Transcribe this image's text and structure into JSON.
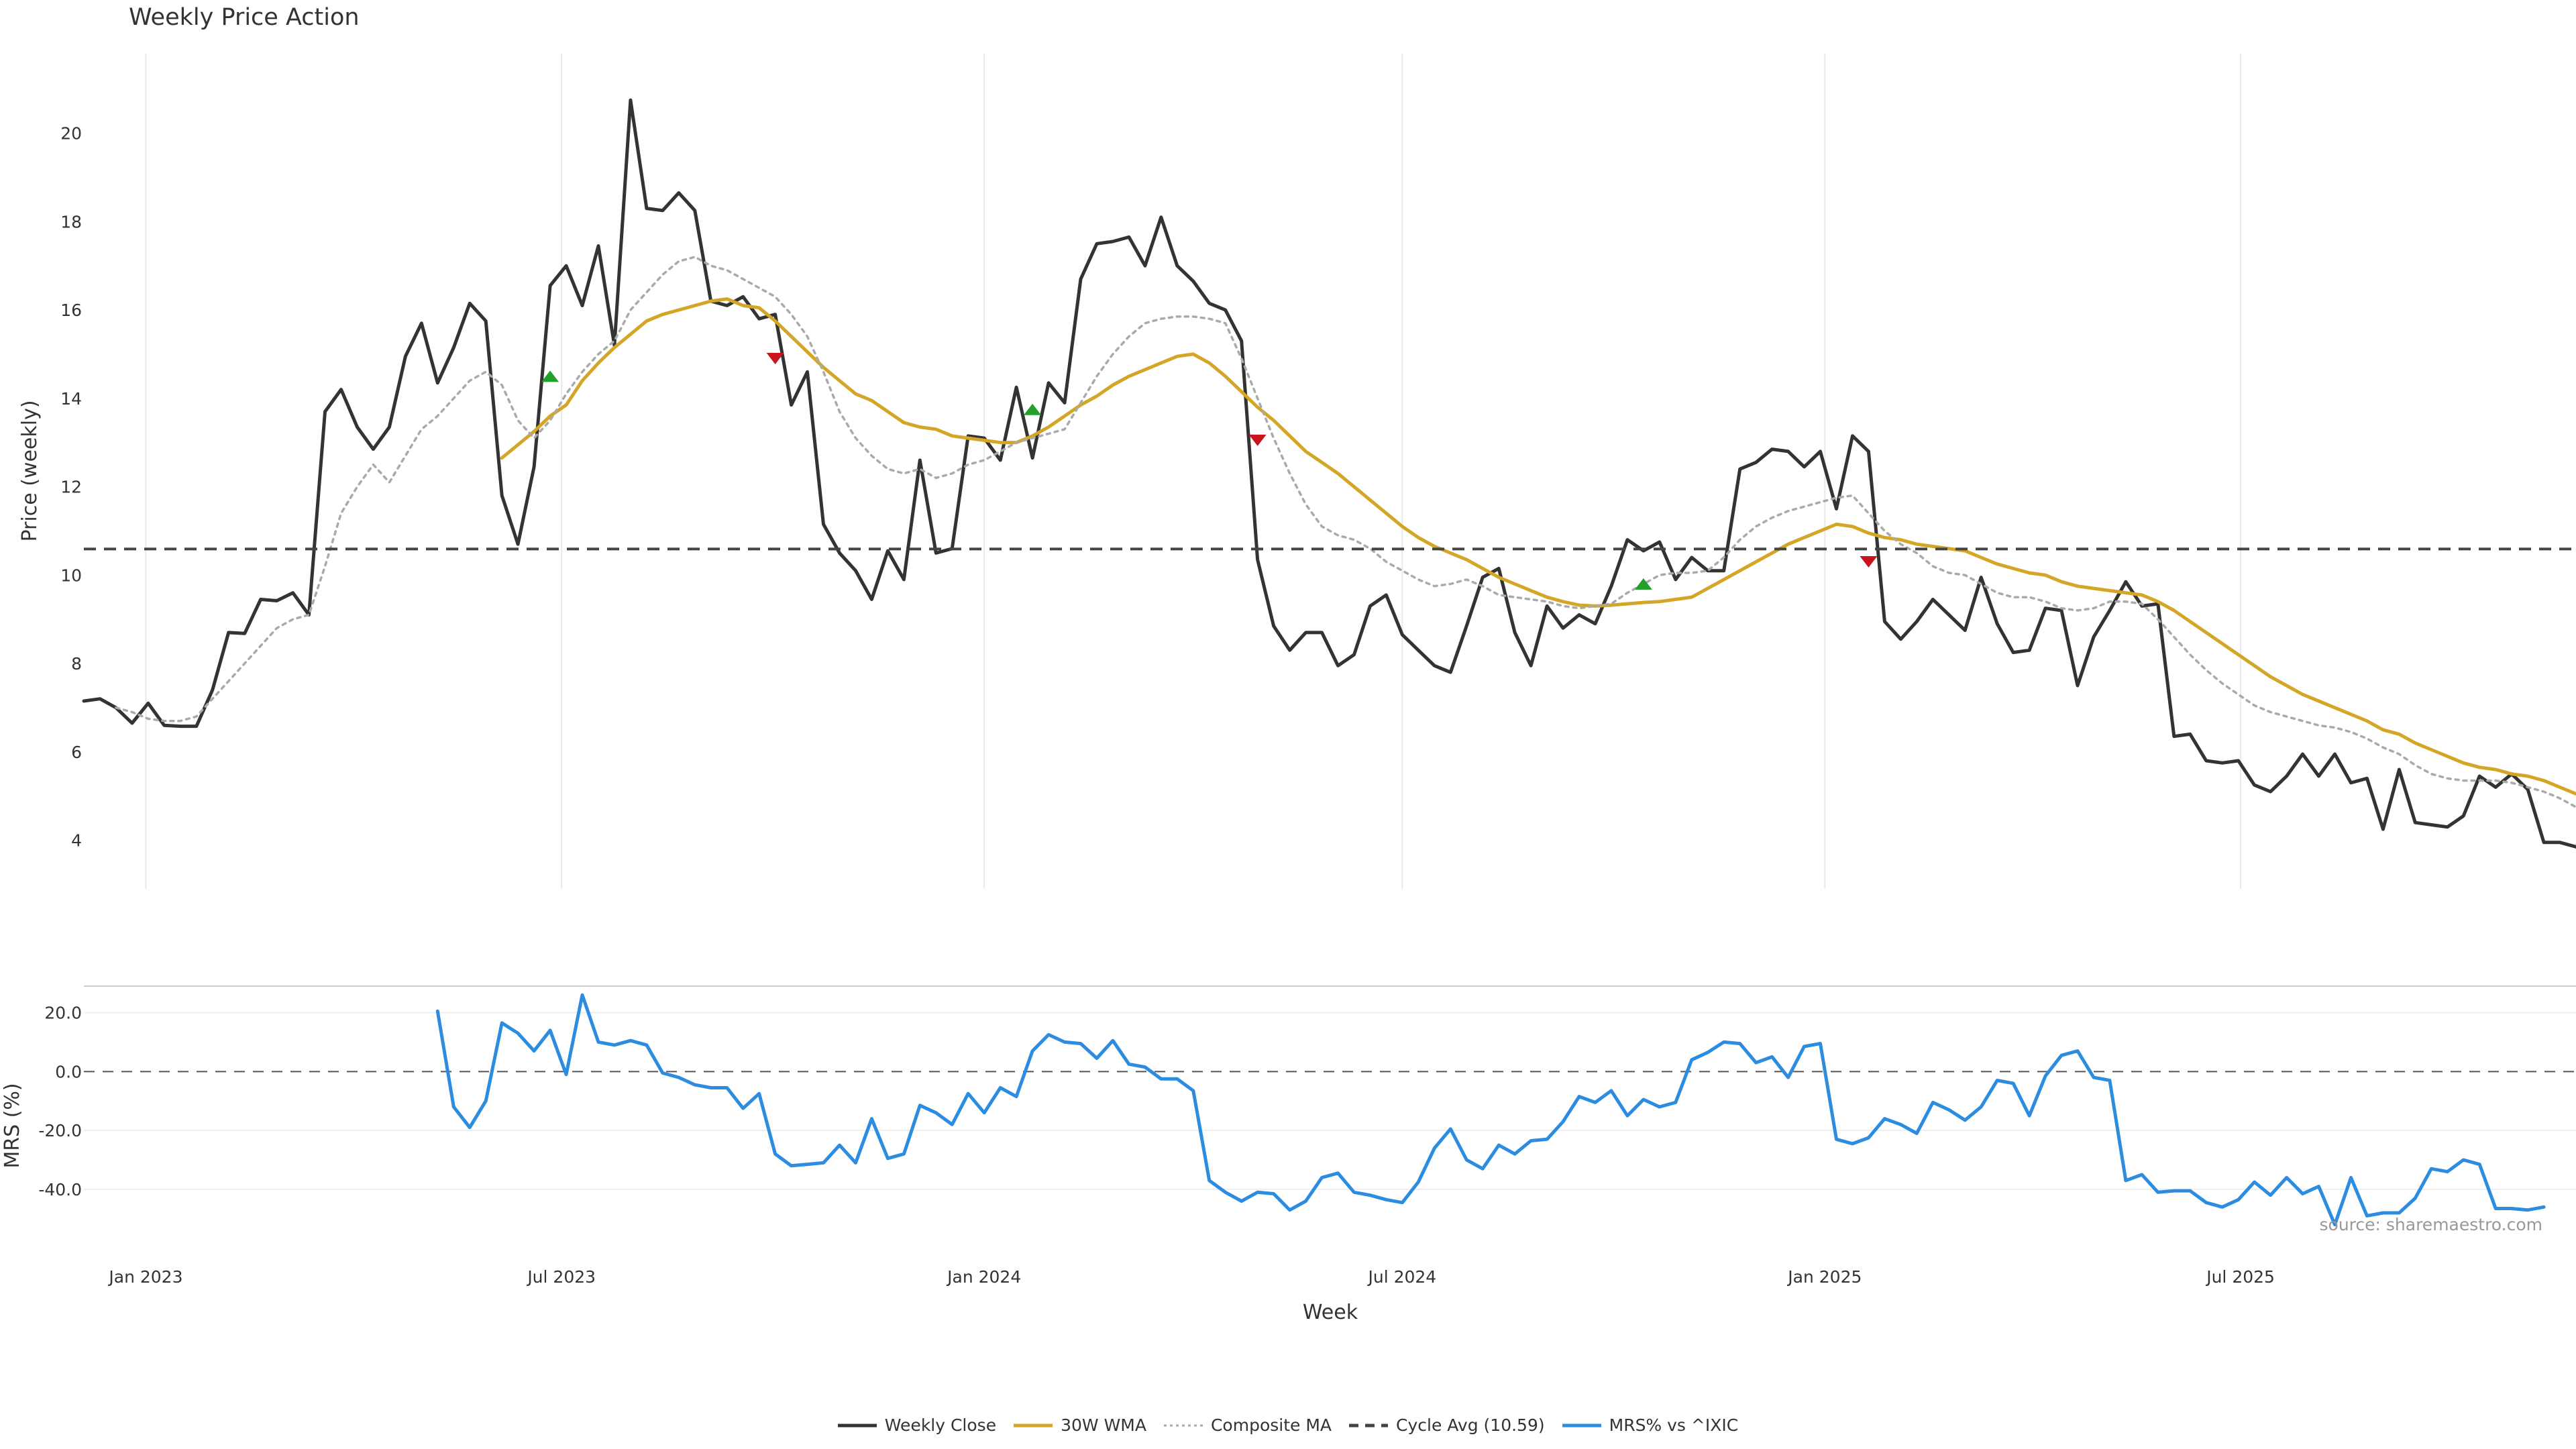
{
  "chart_data": [
    {
      "type": "line",
      "title": "Weekly Price Action",
      "ylabel": "Price (weekly)",
      "xlabel": "Week",
      "ylim": [
        2.9,
        21.8
      ],
      "yticks": [
        4,
        6,
        8,
        10,
        12,
        14,
        16,
        18,
        20
      ],
      "x_start": "2022-12-05",
      "x_end": "2025-11-24",
      "x_ticks": [
        {
          "date": "2023-01-01",
          "label": "Jan 2023"
        },
        {
          "date": "2023-07-01",
          "label": "Jul 2023"
        },
        {
          "date": "2024-01-01",
          "label": "Jan 2024"
        },
        {
          "date": "2024-07-01",
          "label": "Jul 2024"
        },
        {
          "date": "2025-01-01",
          "label": "Jan 2025"
        },
        {
          "date": "2025-07-01",
          "label": "Jul 2025"
        }
      ],
      "grid": "vertical",
      "series": [
        {
          "name": "Weekly Close",
          "color": "#333333",
          "style": "solid",
          "x_start": "2022-12-05",
          "values": [
            7.15,
            7.2,
            7.0,
            6.65,
            7.1,
            6.6,
            6.58,
            6.58,
            7.4,
            8.7,
            8.68,
            9.45,
            9.42,
            9.6,
            9.1,
            13.7,
            14.2,
            13.35,
            12.85,
            13.35,
            14.95,
            15.7,
            14.35,
            15.15,
            16.15,
            15.75,
            11.8,
            10.7,
            12.45,
            16.55,
            17.0,
            16.1,
            17.45,
            15.2,
            20.75,
            18.3,
            18.25,
            18.65,
            18.25,
            16.2,
            16.1,
            16.3,
            15.8,
            15.9,
            13.85,
            14.6,
            11.15,
            10.5,
            10.1,
            9.45,
            10.55,
            9.9,
            12.6,
            10.5,
            10.6,
            13.15,
            13.1,
            12.6,
            14.25,
            12.65,
            14.35,
            13.9,
            16.7,
            17.5,
            17.55,
            17.65,
            17.0,
            18.1,
            17.0,
            16.65,
            16.15,
            16.0,
            15.3,
            10.35,
            8.85,
            8.3,
            8.7,
            8.7,
            7.95,
            8.2,
            9.3,
            9.55,
            8.65,
            8.3,
            7.95,
            7.8,
            8.85,
            9.95,
            10.15,
            8.7,
            7.95,
            9.3,
            8.8,
            9.1,
            8.9,
            9.75,
            10.8,
            10.55,
            10.75,
            9.9,
            10.4,
            10.1,
            10.1,
            12.4,
            12.55,
            12.85,
            12.8,
            12.45,
            12.8,
            11.5,
            13.15,
            12.8,
            8.95,
            8.55,
            8.95,
            9.45,
            9.1,
            8.75,
            9.95,
            8.9,
            8.25,
            8.3,
            9.25,
            9.2,
            7.5,
            8.6,
            9.2,
            9.85,
            9.3,
            9.35,
            6.35,
            6.4,
            5.8,
            5.75,
            5.8,
            5.25,
            5.1,
            5.45,
            5.95,
            5.45,
            5.95,
            5.3,
            5.4,
            4.25,
            5.6,
            4.4,
            4.35,
            4.3,
            4.55,
            5.45,
            5.2,
            5.5,
            5.15,
            3.95,
            3.95,
            3.85,
            3.75
          ]
        },
        {
          "name": "30W WMA",
          "color": "#d4a628",
          "style": "solid",
          "x_start": "2023-06-05",
          "values": [
            12.65,
            12.95,
            13.25,
            13.6,
            13.85,
            14.4,
            14.8,
            15.15,
            15.45,
            15.75,
            15.9,
            16.0,
            16.1,
            16.2,
            16.25,
            16.1,
            16.05,
            15.75,
            15.4,
            15.05,
            14.7,
            14.4,
            14.1,
            13.95,
            13.7,
            13.45,
            13.35,
            13.3,
            13.15,
            13.1,
            13.05,
            13.0,
            13.0,
            13.15,
            13.35,
            13.6,
            13.85,
            14.05,
            14.3,
            14.5,
            14.65,
            14.8,
            14.95,
            15.0,
            14.8,
            14.5,
            14.15,
            13.8,
            13.5,
            13.15,
            12.8,
            12.55,
            12.3,
            12.0,
            11.7,
            11.4,
            11.1,
            10.85,
            10.65,
            10.5,
            10.35,
            10.15,
            9.95,
            9.8,
            9.65,
            9.5,
            9.4,
            9.32,
            9.3,
            9.32,
            9.35,
            9.38,
            9.4,
            9.45,
            9.5,
            9.7,
            9.9,
            10.1,
            10.3,
            10.5,
            10.7,
            10.85,
            11.0,
            11.15,
            11.1,
            10.95,
            10.85,
            10.8,
            10.7,
            10.65,
            10.6,
            10.55,
            10.4,
            10.25,
            10.15,
            10.05,
            10.0,
            9.85,
            9.75,
            9.7,
            9.65,
            9.6,
            9.55,
            9.4,
            9.2,
            8.95,
            8.7,
            8.45,
            8.2,
            7.95,
            7.7,
            7.5,
            7.3,
            7.15,
            7.0,
            6.85,
            6.7,
            6.5,
            6.4,
            6.2,
            6.05,
            5.9,
            5.75,
            5.65,
            5.6,
            5.5,
            5.45,
            5.35,
            5.2,
            5.05,
            4.95,
            4.85
          ]
        },
        {
          "name": "Composite MA",
          "color": "#aaaaaa",
          "style": "dotted",
          "x_start": "2022-12-19",
          "values": [
            7.0,
            6.9,
            6.75,
            6.7,
            6.7,
            6.8,
            7.2,
            7.6,
            8.0,
            8.4,
            8.8,
            9.0,
            9.1,
            10.2,
            11.4,
            12.0,
            12.5,
            12.1,
            12.7,
            13.3,
            13.6,
            14.0,
            14.4,
            14.6,
            14.3,
            13.5,
            13.1,
            13.5,
            14.1,
            14.6,
            15.0,
            15.3,
            16.0,
            16.4,
            16.8,
            17.1,
            17.2,
            17.0,
            16.9,
            16.7,
            16.5,
            16.3,
            15.9,
            15.4,
            14.6,
            13.7,
            13.1,
            12.7,
            12.4,
            12.3,
            12.4,
            12.2,
            12.3,
            12.5,
            12.6,
            12.8,
            13.0,
            13.1,
            13.2,
            13.3,
            13.9,
            14.5,
            15.0,
            15.4,
            15.7,
            15.8,
            15.85,
            15.85,
            15.8,
            15.7,
            14.9,
            14.0,
            13.1,
            12.3,
            11.6,
            11.1,
            10.9,
            10.8,
            10.6,
            10.3,
            10.1,
            9.9,
            9.75,
            9.8,
            9.9,
            9.75,
            9.55,
            9.5,
            9.45,
            9.4,
            9.3,
            9.25,
            9.3,
            9.35,
            9.6,
            9.8,
            10.0,
            10.05,
            10.05,
            10.1,
            10.4,
            10.8,
            11.1,
            11.3,
            11.45,
            11.55,
            11.65,
            11.75,
            11.8,
            11.4,
            11.0,
            10.7,
            10.5,
            10.2,
            10.05,
            10.0,
            9.8,
            9.6,
            9.5,
            9.5,
            9.4,
            9.25,
            9.2,
            9.25,
            9.4,
            9.4,
            9.35,
            9.0,
            8.6,
            8.2,
            7.85,
            7.55,
            7.3,
            7.05,
            6.9,
            6.8,
            6.7,
            6.6,
            6.55,
            6.45,
            6.3,
            6.1,
            5.95,
            5.7,
            5.5,
            5.4,
            5.35,
            5.35,
            5.35,
            5.3,
            5.2,
            5.1,
            4.95,
            4.75
          ]
        },
        {
          "name": "Cycle Avg (10.59)",
          "color": "#444444",
          "style": "dashed",
          "y": 10.59
        }
      ],
      "markers": [
        {
          "date": "2023-06-26",
          "y": 14.5,
          "kind": "buy",
          "color": "#22a02a"
        },
        {
          "date": "2023-10-02",
          "y": 14.9,
          "kind": "sell",
          "color": "#c8141e"
        },
        {
          "date": "2024-01-22",
          "y": 13.75,
          "kind": "buy",
          "color": "#22a02a"
        },
        {
          "date": "2024-04-29",
          "y": 13.05,
          "kind": "sell",
          "color": "#c8141e"
        },
        {
          "date": "2024-10-14",
          "y": 9.8,
          "kind": "buy",
          "color": "#22a02a"
        },
        {
          "date": "2025-01-20",
          "y": 10.3,
          "kind": "sell",
          "color": "#c8141e"
        }
      ]
    },
    {
      "type": "line",
      "ylabel": "MRS (%)",
      "ylim": [
        -53,
        29
      ],
      "yticks": [
        20,
        0,
        -20,
        -40
      ],
      "ytick_labels": [
        "20.0",
        "0.0",
        "-20.0",
        "-40.0"
      ],
      "zero_line": 0,
      "series": [
        {
          "name": "MRS% vs ^IXIC",
          "color": "#2b8ce0",
          "style": "solid",
          "x_start": "2023-05-08",
          "values": [
            20.5,
            -12,
            -19,
            -10,
            16.5,
            13,
            7,
            14,
            -1,
            26,
            10,
            9,
            10.5,
            9,
            -0.5,
            -2,
            -4.5,
            -5.5,
            -5.5,
            -12.5,
            -7.5,
            -28,
            -32,
            -31.5,
            -31,
            -25,
            -31,
            -16,
            -29.5,
            -28,
            -11.5,
            -14,
            -18,
            -7.5,
            -14,
            -5.5,
            -8.5,
            7,
            12.5,
            10,
            9.5,
            4.5,
            10.5,
            2.5,
            1.5,
            -2.5,
            -2.5,
            -6.5,
            -37,
            -41,
            -44,
            -41,
            -41.5,
            -47,
            -44,
            -36,
            -34.5,
            -41,
            -42,
            -43.5,
            -44.5,
            -37.5,
            -26,
            -19.5,
            -30,
            -33,
            -25,
            -28,
            -23.5,
            -23,
            -17,
            -8.5,
            -10.5,
            -6.5,
            -15,
            -9.5,
            -12,
            -10.5,
            4,
            6.5,
            10,
            9.5,
            3,
            5,
            -2,
            8.5,
            9.5,
            -23,
            -24.5,
            -22.5,
            -16,
            -18,
            -21,
            -10.5,
            -13,
            -16.5,
            -12,
            -3,
            -4,
            -15,
            -1.5,
            5.5,
            7,
            -2,
            -3,
            -37,
            -35,
            -41,
            -40.5,
            -40.5,
            -44.5,
            -46,
            -43.5,
            -37.5,
            -42,
            -36,
            -41.5,
            -39,
            -52,
            -36,
            -49,
            -48,
            -48,
            -43,
            -33,
            -34,
            -30,
            -31.5,
            -46.5,
            -46.5,
            -47,
            -46
          ]
        }
      ],
      "annotation": "source: sharemaestro.com"
    }
  ],
  "legend": [
    {
      "label": "Weekly Close",
      "color": "#333333",
      "style": "solid"
    },
    {
      "label": "30W WMA",
      "color": "#d4a628",
      "style": "solid"
    },
    {
      "label": "Composite MA",
      "color": "#aaaaaa",
      "style": "dotted"
    },
    {
      "label": "Cycle Avg (10.59)",
      "color": "#444444",
      "style": "dashed"
    },
    {
      "label": "MRS% vs ^IXIC",
      "color": "#2b8ce0",
      "style": "solid"
    }
  ]
}
